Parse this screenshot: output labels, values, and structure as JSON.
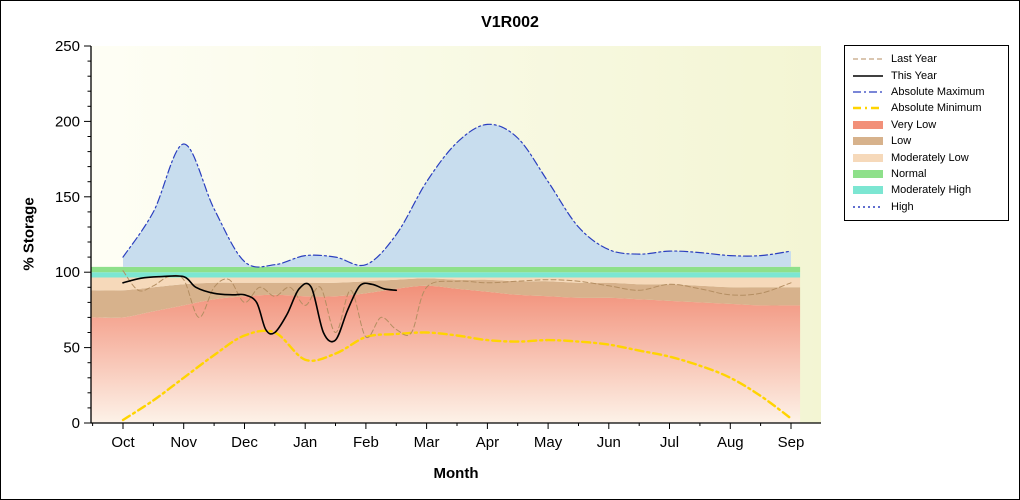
{
  "chart_data": {
    "type": "line",
    "title": "V1R002",
    "xlabel": "Month",
    "ylabel": "% Storage",
    "ylim": [
      0,
      250
    ],
    "yticks": [
      0,
      50,
      100,
      150,
      200,
      250
    ],
    "y_minor_step": 10,
    "categories": [
      "Oct",
      "Nov",
      "Dec",
      "Jan",
      "Feb",
      "Mar",
      "Apr",
      "May",
      "Jun",
      "Jul",
      "Aug",
      "Sep"
    ],
    "plot_background": {
      "from": "#fefef5",
      "to": "#f3f5d3"
    },
    "edges": {
      "very_low_top": {
        "x": [
          -0.53,
          0,
          0.5,
          1,
          1.5,
          2,
          2.5,
          3,
          3.5,
          4,
          4.5,
          5,
          5.5,
          6,
          6.5,
          7,
          7.5,
          8,
          8.5,
          9,
          9.5,
          10,
          10.5,
          11,
          11.15
        ],
        "v": [
          70,
          70,
          74,
          78,
          82,
          84,
          85,
          84,
          84,
          86,
          89,
          91,
          89,
          87,
          85,
          84,
          83,
          83,
          82,
          81,
          80,
          79,
          78,
          78,
          78
        ]
      },
      "low_top": {
        "x": [
          -0.53,
          0,
          0.5,
          1,
          1.5,
          2,
          2.5,
          3,
          3.5,
          4,
          4.5,
          5,
          5.5,
          6,
          6.5,
          7,
          7.5,
          8,
          8.5,
          9,
          9.5,
          10,
          10.5,
          11,
          11.15
        ],
        "v": [
          88,
          88,
          90,
          92,
          93,
          93,
          93,
          93,
          93,
          94,
          95,
          96,
          95,
          95,
          94,
          94,
          93,
          93,
          92,
          92,
          91,
          90,
          90,
          90,
          90
        ]
      }
    },
    "bands": [
      {
        "name": "very_low",
        "label": "Very Low",
        "fill": "#f29079",
        "fill_fade": "#fdf2e8",
        "gradient": true,
        "top": "very_low_top",
        "bottom": 0
      },
      {
        "name": "low",
        "label": "Low",
        "fill": "#d7b28c",
        "top": "low_top",
        "bottom": "very_low_top"
      },
      {
        "name": "moderately_low",
        "label": "Moderately Low",
        "fill": "#f6d9ba",
        "top": 96.5,
        "bottom": "low_top"
      },
      {
        "name": "moderately_high",
        "label": "Moderately High",
        "fill": "#7ce6d2",
        "top": 100,
        "bottom": 96.5
      },
      {
        "name": "normal",
        "label": "Normal",
        "fill": "#8ee08a",
        "top": 103.5,
        "bottom": 100
      },
      {
        "name": "high",
        "label": "High",
        "fill": "#c8ddee",
        "top": "absolute_maximum",
        "bottom": 103.5
      }
    ],
    "series": [
      {
        "name": "absolute_maximum",
        "label": "Absolute Maximum",
        "color": "#2b3fbf",
        "dash": "8 3 2 3",
        "width": 1.2,
        "x": [
          0,
          0.5,
          1,
          1.5,
          2,
          2.5,
          3,
          3.5,
          4,
          4.5,
          5,
          5.5,
          6,
          6.5,
          7,
          7.5,
          8,
          8.5,
          9,
          9.5,
          10,
          10.5,
          11
        ],
        "v": [
          110,
          140,
          185,
          142,
          107,
          105,
          111,
          110,
          105,
          125,
          160,
          186,
          198,
          189,
          160,
          130,
          115,
          112,
          114,
          113,
          111,
          111,
          114
        ]
      },
      {
        "name": "absolute_minimum",
        "label": "Absolute Minimum",
        "color": "#ffd400",
        "dash": "8 4 2 4",
        "width": 2.4,
        "x": [
          0,
          0.5,
          1,
          1.5,
          2,
          2.5,
          3,
          3.5,
          4,
          4.5,
          5,
          5.5,
          6,
          6.5,
          7,
          7.5,
          8,
          8.5,
          9,
          9.5,
          10,
          10.5,
          11
        ],
        "v": [
          2,
          15,
          30,
          45,
          58,
          60,
          42,
          46,
          57,
          59,
          60,
          58,
          55,
          54,
          55,
          54,
          52,
          48,
          44,
          38,
          30,
          18,
          3
        ]
      },
      {
        "name": "last_year",
        "label": "Last Year",
        "color": "#b48e62",
        "dash": "5 3",
        "width": 1,
        "x": [
          0,
          0.25,
          0.5,
          0.75,
          1,
          1.25,
          1.5,
          1.75,
          2,
          2.25,
          2.5,
          2.75,
          3,
          3.25,
          3.5,
          3.75,
          4,
          4.25,
          4.5,
          4.75,
          5,
          5.5,
          6,
          6.5,
          7,
          7.5,
          8,
          8.5,
          9,
          9.5,
          10,
          10.5,
          11
        ],
        "v": [
          101,
          88,
          91,
          97,
          95,
          70,
          90,
          95,
          80,
          90,
          84,
          90,
          78,
          90,
          60,
          88,
          57,
          70,
          62,
          60,
          90,
          94,
          93,
          94,
          95,
          94,
          91,
          88,
          92,
          89,
          85,
          86,
          93
        ]
      },
      {
        "name": "this_year",
        "label": "This Year",
        "color": "#000000",
        "dash": "",
        "width": 1.6,
        "x": [
          0,
          0.3,
          0.6,
          1,
          1.2,
          1.5,
          1.8,
          2,
          2.2,
          2.35,
          2.5,
          2.7,
          2.9,
          3.1,
          3.3,
          3.5,
          3.7,
          3.9,
          4.1,
          4.3,
          4.5
        ],
        "v": [
          93,
          96,
          97,
          97,
          90,
          86,
          85,
          85,
          80,
          62,
          60,
          72,
          89,
          90,
          60,
          55,
          75,
          91,
          92,
          89,
          88
        ]
      }
    ],
    "legend": [
      {
        "label": "Last Year",
        "swatch": "line",
        "color": "#b48e62",
        "dash": "5 3",
        "width": 1
      },
      {
        "label": "This Year",
        "swatch": "line",
        "color": "#000000",
        "dash": "",
        "width": 1.5
      },
      {
        "label": "Absolute Maximum",
        "swatch": "line",
        "color": "#2b3fbf",
        "dash": "8 3 2 3",
        "width": 1.3
      },
      {
        "label": "Absolute Minimum",
        "swatch": "line",
        "color": "#ffd400",
        "dash": "8 4 2 4",
        "width": 2.4
      },
      {
        "label": "Very Low",
        "swatch": "area",
        "color": "#f29079"
      },
      {
        "label": "Low",
        "swatch": "area",
        "color": "#d7b28c"
      },
      {
        "label": "Moderately Low",
        "swatch": "area",
        "color": "#f6d9ba"
      },
      {
        "label": "Normal",
        "swatch": "area",
        "color": "#8ee08a"
      },
      {
        "label": "Moderately High",
        "swatch": "area",
        "color": "#7ce6d2"
      },
      {
        "label": "High",
        "swatch": "line",
        "color": "#2b3fbf",
        "dash": "2 3",
        "width": 1.6
      }
    ]
  }
}
